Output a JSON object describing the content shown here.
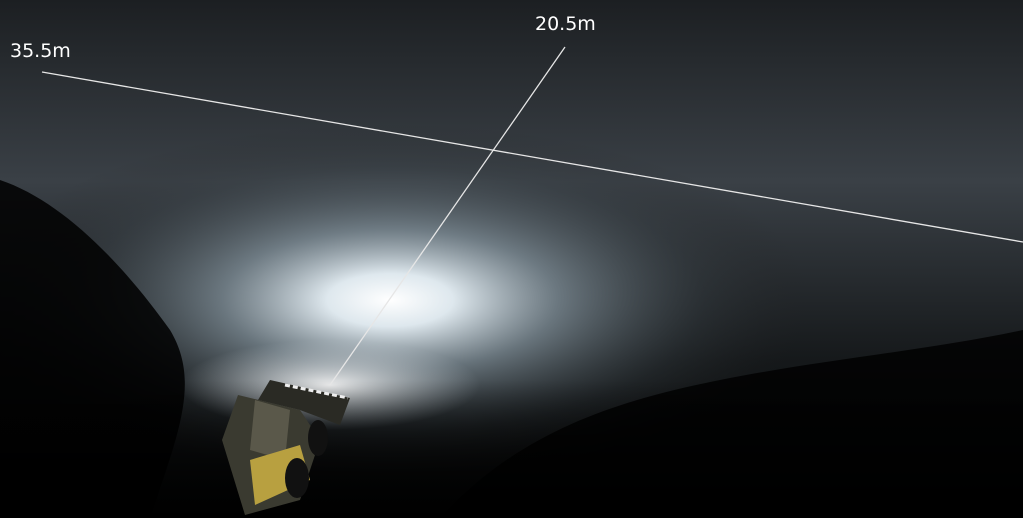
{
  "labels": {
    "horizontal_distance": "35.5m",
    "forward_distance": "20.5m"
  }
}
